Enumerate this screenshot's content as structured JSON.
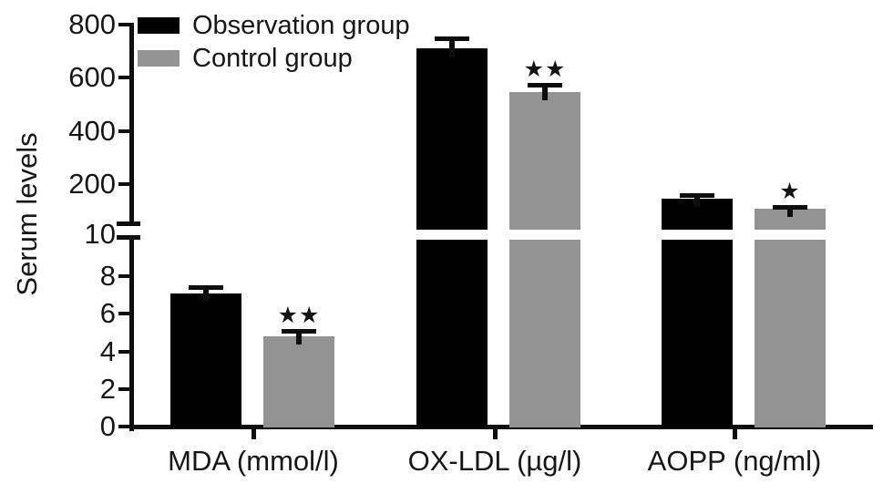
{
  "chart_data": {
    "type": "bar",
    "title": "",
    "ylabel": "Serum levels",
    "xlabel": "",
    "categories": [
      "MDA (mmol/l)",
      "OX-LDL (µg/l)",
      "AOPP (ng/ml)"
    ],
    "series": [
      {
        "name": "Observation group",
        "color": "#000000",
        "values": [
          7.1,
          710,
          145
        ],
        "errors": [
          0.35,
          38,
          14
        ],
        "significance": [
          "",
          "",
          ""
        ]
      },
      {
        "name": "Control group",
        "color": "#939393",
        "values": [
          4.8,
          545,
          108
        ],
        "errors": [
          0.3,
          30,
          5
        ],
        "significance": [
          "**",
          "**",
          "*"
        ]
      }
    ],
    "y_axis": {
      "broken": true,
      "lower_segment": {
        "range": [
          0,
          10
        ],
        "ticks": [
          0,
          2,
          4,
          6,
          8,
          10
        ]
      },
      "upper_segment": {
        "range": [
          200,
          800
        ],
        "ticks": [
          200,
          400,
          600,
          800
        ]
      }
    },
    "grid": false,
    "legend_position": "top-left",
    "axis_color": "#0d0d0d",
    "background_color": "#ffffff"
  }
}
